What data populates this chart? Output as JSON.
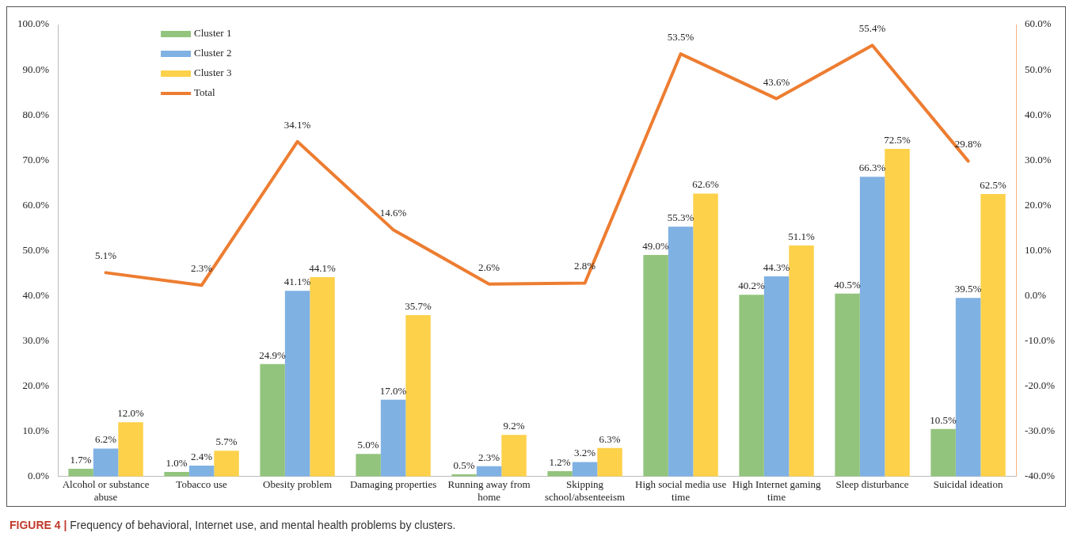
{
  "chart_data": {
    "type": "bar",
    "categories": [
      "Alcohol or substance abuse",
      "Tobacco use",
      "Obesity problem",
      "Damaging properties",
      "Running away from home",
      "Skipping school/absenteeism",
      "High social media use time",
      "High Internet gaming time",
      "Sleep disturbance",
      "Suicidal ideation"
    ],
    "series": [
      {
        "name": "Cluster 1",
        "color": "#93c47d",
        "values": [
          1.7,
          1.0,
          24.9,
          5.0,
          0.5,
          1.2,
          49.0,
          40.2,
          40.5,
          10.5
        ],
        "value_labels": [
          "1.7%",
          "1.0%",
          "24.9%",
          "5.0%",
          "0.5%",
          "1.2%",
          "49.0%",
          "40.2%",
          "40.5%",
          "10.5%"
        ]
      },
      {
        "name": "Cluster 2",
        "color": "#80b1e3",
        "values": [
          6.2,
          2.4,
          41.1,
          17.0,
          2.3,
          3.2,
          55.3,
          44.3,
          66.3,
          39.5
        ],
        "value_labels": [
          "6.2%",
          "2.4%",
          "41.1%",
          "17.0%",
          "2.3%",
          "3.2%",
          "55.3%",
          "44.3%",
          "66.3%",
          "39.5%"
        ]
      },
      {
        "name": "Cluster 3",
        "color": "#fdd14a",
        "values": [
          12.0,
          5.7,
          44.1,
          35.7,
          9.2,
          6.3,
          62.6,
          51.1,
          72.5,
          62.5
        ],
        "value_labels": [
          "12.0%",
          "5.7%",
          "44.1%",
          "35.7%",
          "9.2%",
          "6.3%",
          "62.6%",
          "51.1%",
          "72.5%",
          "62.5%"
        ]
      },
      {
        "name": "Total",
        "type": "line",
        "axis": "y2",
        "color": "#ed7d31",
        "values": [
          5.1,
          2.3,
          34.1,
          14.6,
          2.6,
          2.8,
          53.5,
          43.6,
          55.4,
          29.8
        ],
        "value_labels": [
          "5.1%",
          "2.3%",
          "34.1%",
          "14.6%",
          "2.6%",
          "2.8%",
          "53.5%",
          "43.6%",
          "55.4%",
          "29.8%"
        ]
      }
    ],
    "ylim": [
      0,
      100
    ],
    "yticks": [
      {
        "value": 0,
        "label": "0.0%"
      },
      {
        "value": 10,
        "label": "10.0%"
      },
      {
        "value": 20,
        "label": "20.0%"
      },
      {
        "value": 30,
        "label": "30.0%"
      },
      {
        "value": 40,
        "label": "40.0%"
      },
      {
        "value": 50,
        "label": "50.0%"
      },
      {
        "value": 60,
        "label": "60.0%"
      },
      {
        "value": 70,
        "label": "70.0%"
      },
      {
        "value": 80,
        "label": "80.0%"
      },
      {
        "value": 90,
        "label": "90.0%"
      },
      {
        "value": 100,
        "label": "100.0%"
      }
    ],
    "y2lim": [
      -40,
      60
    ],
    "y2ticks": [
      {
        "value": -40,
        "label": "-40.0%"
      },
      {
        "value": -30,
        "label": "-30.0%"
      },
      {
        "value": -20,
        "label": "-20.0%"
      },
      {
        "value": -10,
        "label": "-10.0%"
      },
      {
        "value": 0,
        "label": "0.0%"
      },
      {
        "value": 10,
        "label": "10.0%"
      },
      {
        "value": 20,
        "label": "20.0%"
      },
      {
        "value": 30,
        "label": "30.0%"
      },
      {
        "value": 40,
        "label": "40.0%"
      },
      {
        "value": 50,
        "label": "50.0%"
      },
      {
        "value": 60,
        "label": "60.0%"
      }
    ],
    "legend": "top left",
    "marker": "none",
    "line_style": "solid",
    "annotations": [
      "FIGURE 4 | Frequency of behavioral, Internet use, and mental health problems by clusters."
    ]
  }
}
